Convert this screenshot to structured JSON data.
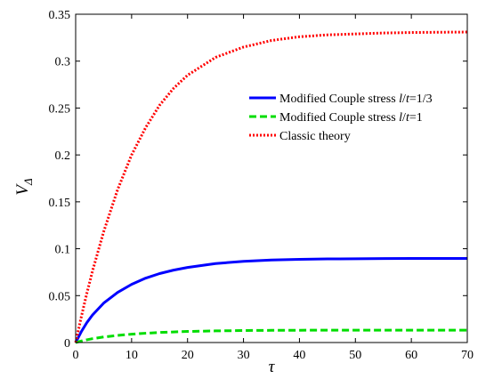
{
  "chart_data": {
    "type": "line",
    "title": "",
    "xlabel": "τ",
    "ylabel": {
      "main": "V",
      "subscript": "Δ"
    },
    "xlim": [
      0,
      70
    ],
    "ylim": [
      0,
      0.35
    ],
    "xticks": [
      0,
      10,
      20,
      30,
      40,
      50,
      60,
      70
    ],
    "xtick_labels": [
      "0",
      "10",
      "20",
      "30",
      "40",
      "50",
      "60",
      "70"
    ],
    "yticks": [
      0,
      0.05,
      0.1,
      0.15,
      0.2,
      0.25,
      0.3,
      0.35
    ],
    "ytick_labels": [
      "0",
      "0.05",
      "0.1",
      "0.15",
      "0.2",
      "0.25",
      "0.3",
      "0.35"
    ],
    "grid": false,
    "legend_position": "upper-right",
    "x": [
      0,
      1,
      2,
      3,
      5,
      7.5,
      10,
      12.5,
      15,
      17.5,
      20,
      25,
      30,
      35,
      40,
      45,
      50,
      55,
      60,
      65,
      70
    ],
    "series": [
      {
        "name_parts": [
          "Modified Couple stress ",
          "l",
          "/",
          "t",
          "=1/3"
        ],
        "color": "#0000ff",
        "dash": "solid",
        "values": [
          0,
          0.0115,
          0.0212,
          0.0293,
          0.042,
          0.0534,
          0.062,
          0.0686,
          0.0735,
          0.0772,
          0.08,
          0.0842,
          0.0866,
          0.088,
          0.0887,
          0.0891,
          0.0893,
          0.0895,
          0.0896,
          0.0896,
          0.0896
        ]
      },
      {
        "name_parts": [
          "Modified Couple stress ",
          "l",
          "/",
          "t",
          "=1"
        ],
        "color": "#00dd00",
        "dash": "dashed",
        "values": [
          0,
          0.0016,
          0.0029,
          0.0041,
          0.0059,
          0.0076,
          0.0089,
          0.0099,
          0.0107,
          0.0113,
          0.0118,
          0.0124,
          0.0128,
          0.013,
          0.0131,
          0.0132,
          0.0132,
          0.0132,
          0.0132,
          0.0132,
          0.0132
        ]
      },
      {
        "name_parts": [
          "Classic theory"
        ],
        "color": "#ff0000",
        "dash": "dotted",
        "values": [
          0,
          0.0272,
          0.0525,
          0.076,
          0.118,
          0.163,
          0.2,
          0.229,
          0.253,
          0.271,
          0.285,
          0.304,
          0.315,
          0.322,
          0.326,
          0.328,
          0.329,
          0.33,
          0.3305,
          0.3308,
          0.331
        ]
      }
    ]
  }
}
